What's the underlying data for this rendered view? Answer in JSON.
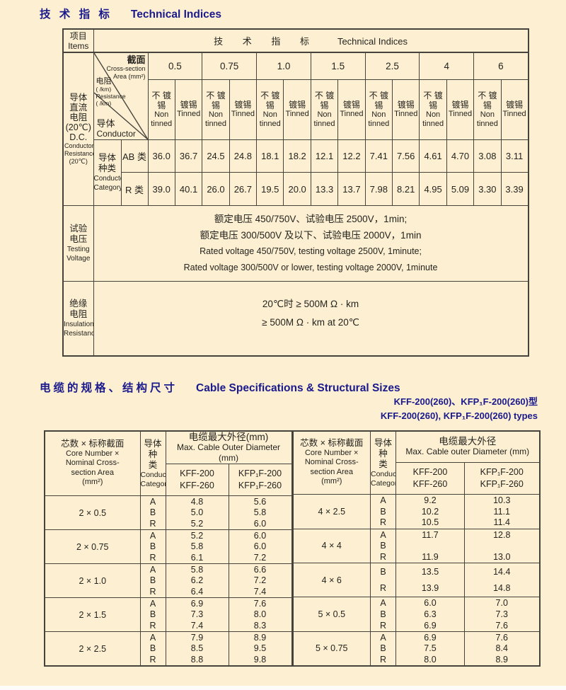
{
  "page": {
    "bg": "#fcefd2",
    "accent": "#1a1a8c",
    "line_color": "#45433c"
  },
  "section1": {
    "title_zh": "技 术 指 标",
    "title_en": "Technical Indices",
    "table": {
      "items_zh": "项目",
      "items_en": "Items",
      "header_zh": "技 术 指 标",
      "header_en": "Technical Indices",
      "row_label_lines": [
        "导体",
        "直流",
        "电阻",
        "(20℃)",
        "D.C."
      ],
      "row_label_en_lines": [
        "Conductor",
        "Resistance",
        "(20℃)"
      ],
      "diagonal": {
        "cross_section_zh": "截面",
        "cross_section_en1": "Cross-section",
        "cross_section_en2": "Area (mm²)",
        "resistance_zh": "电阻",
        "resistance_unit_zh": "( /km)",
        "resistance_en": "Resistance",
        "resistance_unit_en": "( /km)",
        "conductor_zh": "导体",
        "conductor_en": "Conductor"
      },
      "cross_sections": [
        "0.5",
        "0.75",
        "1.0",
        "1.5",
        "2.5",
        "4",
        "6"
      ],
      "non_tinned_lines_zh": [
        "不 镀",
        "锡"
      ],
      "non_tinned_lines_en": [
        "Non",
        "tinned"
      ],
      "tinned_line_zh": "镀锡",
      "tinned_line_en": "Tinned",
      "category_label_lines": [
        "导体",
        "种类"
      ],
      "category_label_en_lines": [
        "Conductor",
        "Category"
      ],
      "resistance_rows": [
        {
          "label": "AB 类",
          "values": [
            "36.0",
            "36.7",
            "24.5",
            "24.8",
            "18.1",
            "18.2",
            "12.1",
            "12.2",
            "7.41",
            "7.56",
            "4.61",
            "4.70",
            "3.08",
            "3.11"
          ]
        },
        {
          "label": "R 类",
          "values": [
            "39.0",
            "40.1",
            "26.0",
            "26.7",
            "19.5",
            "20.0",
            "13.3",
            "13.7",
            "7.98",
            "8.21",
            "4.95",
            "5.09",
            "3.30",
            "3.39"
          ]
        }
      ],
      "testing": {
        "label_zh_lines": [
          "试验",
          "电压"
        ],
        "label_en_lines": [
          "Testing",
          "Voltage"
        ],
        "line1": "额定电压 450/750V、试验电压 2500V，1min;",
        "line2": "额定电压 300/500V 及以下、试验电压 2000V，1min",
        "line3": "Rated voltage 450/750V, testing voltage 2500V, 1minute;",
        "line4": "Rated voltage 300/500V or lower, testing voltage 2000V, 1minute"
      },
      "insulation": {
        "label_zh_lines": [
          "绝缘",
          "电阻"
        ],
        "label_en_lines": [
          "Insulation",
          "Resistance"
        ],
        "line1": "20℃时 ≥ 500M Ω · km",
        "line2": "≥ 500M Ω · km at 20℃"
      }
    }
  },
  "section2": {
    "title_zh": "电缆的规格、结构尺寸",
    "title_en": "Cable Specifications & Structural Sizes",
    "type_line1": "KFF-200(260)、KFP₁F-200(260)型",
    "type_line2": "KFF-200(260), KFP₁F-200(260) types",
    "spec_tables": [
      {
        "core_header_zh": "芯数 × 标称截面",
        "core_header_lines": [
          "Core Number ×",
          "Nominal Cross-",
          "section Area",
          "(mm²)"
        ],
        "category_zh1": "导体种",
        "category_zh2": "类",
        "category_en1": "Conductor",
        "category_en2": "Category",
        "diameter_zh": "电缆最大外径(mm)",
        "diameter_en": "Max. Cable Outer Diameter (mm)",
        "model1_lines": [
          "KFF-200",
          "KFF-260"
        ],
        "model2_lines": [
          "KFP₁F-200",
          "KFP₁F-260"
        ],
        "groups": [
          {
            "size": "2 × 0.5",
            "cats": [
              "A",
              "B",
              "R"
            ],
            "kff": [
              "4.8",
              "5.0",
              "5.2"
            ],
            "kfp": [
              "5.6",
              "5.8",
              "6.0"
            ]
          },
          {
            "size": "2 × 0.75",
            "cats": [
              "A",
              "B",
              "R"
            ],
            "kff": [
              "5.2",
              "5.8",
              "6.1"
            ],
            "kfp": [
              "6.0",
              "6.0",
              "7.2"
            ]
          },
          {
            "size": "2 × 1.0",
            "cats": [
              "A",
              "B",
              "R"
            ],
            "kff": [
              "5.8",
              "6.2",
              "6.4"
            ],
            "kfp": [
              "6.6",
              "7.2",
              "7.4"
            ]
          },
          {
            "size": "2 × 1.5",
            "cats": [
              "A",
              "B",
              "R"
            ],
            "kff": [
              "6.9",
              "7.3",
              "7.4"
            ],
            "kfp": [
              "7.6",
              "8.0",
              "8.3"
            ]
          },
          {
            "size": "2 × 2.5",
            "cats": [
              "A",
              "B",
              "R"
            ],
            "kff": [
              "7.9",
              "8.5",
              "8.8"
            ],
            "kfp": [
              "8.9",
              "9.5",
              "9.8"
            ]
          }
        ]
      },
      {
        "core_header_zh": "芯数 × 标称截面",
        "core_header_lines": [
          "Core Number ×",
          "Nominal Cross-",
          "section Area",
          "(mm²)"
        ],
        "category_zh1": "导体种",
        "category_zh2": "类",
        "category_en1": "Conductor",
        "category_en2": "Category",
        "diameter_zh": "电缆最大外径",
        "diameter_en": "Max. Cable  outer Diameter (mm)",
        "model1_lines": [
          "KFF-200",
          "KFF-260"
        ],
        "model2_lines": [
          "KFP₁F-200",
          "KFP₁F-260"
        ],
        "groups": [
          {
            "size": "4 × 2.5",
            "cats": [
              "A",
              "B",
              "R"
            ],
            "kff": [
              "9.2",
              "10.2",
              "10.5"
            ],
            "kfp": [
              "10.3",
              "11.1",
              "11.4"
            ]
          },
          {
            "size": "4 × 4",
            "cats": [
              "A",
              "B",
              "R"
            ],
            "kff": [
              "11.7",
              "",
              "11.9"
            ],
            "kfp": [
              "12.8",
              "",
              "13.0"
            ]
          },
          {
            "size": "4 × 6",
            "cats": [
              "B",
              "R"
            ],
            "kff": [
              "13.5",
              "13.9"
            ],
            "kfp": [
              "14.4",
              "14.8"
            ]
          },
          {
            "size": "5 × 0.5",
            "cats": [
              "A",
              "B",
              "R"
            ],
            "kff": [
              "6.0",
              "6.3",
              "6.9"
            ],
            "kfp": [
              "7.0",
              "7.3",
              "7.6"
            ]
          },
          {
            "size": "5 × 0.75",
            "cats": [
              "A",
              "B",
              "R"
            ],
            "kff": [
              "6.9",
              "7.5",
              "8.0"
            ],
            "kfp": [
              "7.6",
              "8.4",
              "8.9"
            ]
          }
        ]
      }
    ]
  }
}
